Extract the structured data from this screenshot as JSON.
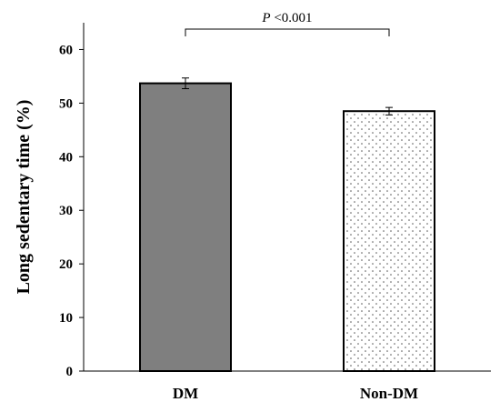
{
  "chart_data": {
    "type": "bar",
    "categories": [
      "DM",
      "Non-DM"
    ],
    "values": [
      53.7,
      48.5
    ],
    "errors": [
      1.0,
      0.7
    ],
    "ylabel": "Long sedentary time (%)",
    "xlabel": "",
    "ylim": [
      0,
      65
    ],
    "yticks": [
      0,
      10,
      20,
      30,
      40,
      50,
      60
    ],
    "grid": false,
    "bar_styles": [
      "solid",
      "dotted"
    ],
    "bar_fill_colors": [
      "#7f7f7f",
      "#ffffff"
    ],
    "significance": {
      "italic": "P",
      "text": " <0.001"
    }
  }
}
